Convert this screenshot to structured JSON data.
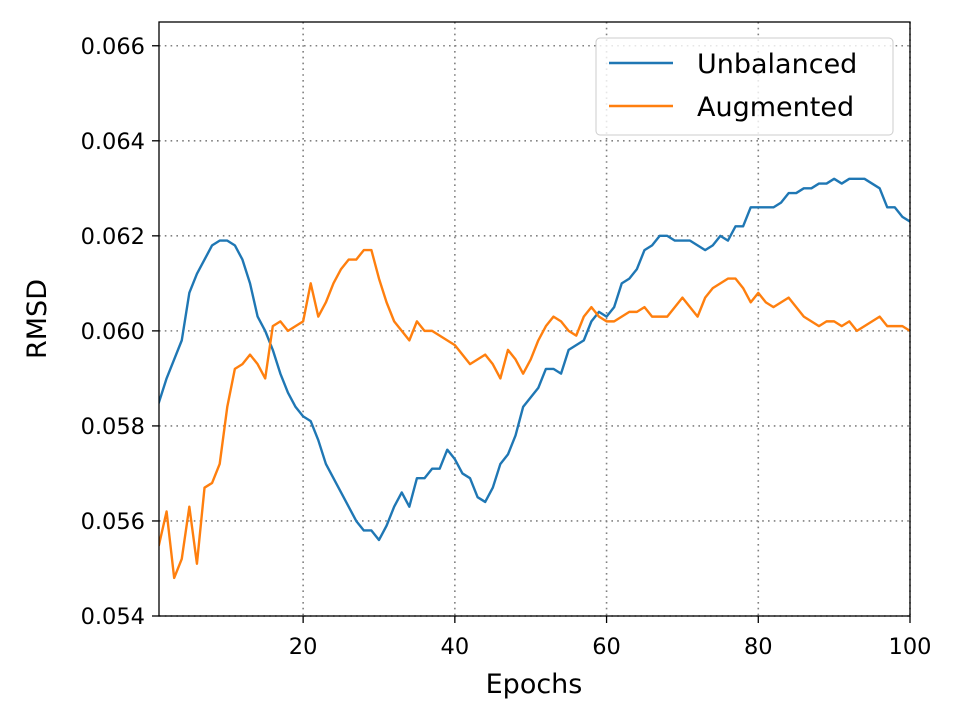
{
  "chart_data": {
    "type": "line",
    "xlabel": "Epochs",
    "ylabel": "RMSD",
    "xlim": [
      1,
      100
    ],
    "ylim": [
      0.054,
      0.0665
    ],
    "xticks": [
      20,
      40,
      60,
      80,
      100
    ],
    "xtick_labels": [
      "20",
      "40",
      "60",
      "80",
      "100"
    ],
    "yticks": [
      0.054,
      0.056,
      0.058,
      0.06,
      0.062,
      0.064,
      0.066
    ],
    "ytick_labels": [
      "0.054",
      "0.056",
      "0.058",
      "0.060",
      "0.062",
      "0.064",
      "0.066"
    ],
    "grid": true,
    "legend_position": "top-right",
    "x": [
      1,
      2,
      3,
      4,
      5,
      6,
      7,
      8,
      9,
      10,
      11,
      12,
      13,
      14,
      15,
      16,
      17,
      18,
      19,
      20,
      21,
      22,
      23,
      24,
      25,
      26,
      27,
      28,
      29,
      30,
      31,
      32,
      33,
      34,
      35,
      36,
      37,
      38,
      39,
      40,
      41,
      42,
      43,
      44,
      45,
      46,
      47,
      48,
      49,
      50,
      51,
      52,
      53,
      54,
      55,
      56,
      57,
      58,
      59,
      60,
      61,
      62,
      63,
      64,
      65,
      66,
      67,
      68,
      69,
      70,
      71,
      72,
      73,
      74,
      75,
      76,
      77,
      78,
      79,
      80,
      81,
      82,
      83,
      84,
      85,
      86,
      87,
      88,
      89,
      90,
      91,
      92,
      93,
      94,
      95,
      96,
      97,
      98,
      99,
      100
    ],
    "series": [
      {
        "name": "Unbalanced",
        "color": "#1f77b4",
        "values": [
          0.0585,
          0.059,
          0.0594,
          0.0598,
          0.0608,
          0.0612,
          0.0615,
          0.0618,
          0.0619,
          0.0619,
          0.0618,
          0.0615,
          0.061,
          0.0603,
          0.06,
          0.0596,
          0.0591,
          0.0587,
          0.0584,
          0.0582,
          0.0581,
          0.0577,
          0.0572,
          0.0569,
          0.0566,
          0.0563,
          0.056,
          0.0558,
          0.0558,
          0.0556,
          0.0559,
          0.0563,
          0.0566,
          0.0563,
          0.0569,
          0.0569,
          0.0571,
          0.0571,
          0.0575,
          0.0573,
          0.057,
          0.0569,
          0.0565,
          0.0564,
          0.0567,
          0.0572,
          0.0574,
          0.0578,
          0.0584,
          0.0586,
          0.0588,
          0.0592,
          0.0592,
          0.0591,
          0.0596,
          0.0597,
          0.0598,
          0.0602,
          0.0604,
          0.0603,
          0.0605,
          0.061,
          0.0611,
          0.0613,
          0.0617,
          0.0618,
          0.062,
          0.062,
          0.0619,
          0.0619,
          0.0619,
          0.0618,
          0.0617,
          0.0618,
          0.062,
          0.0619,
          0.0622,
          0.0622,
          0.0626,
          0.0626,
          0.0626,
          0.0626,
          0.0627,
          0.0629,
          0.0629,
          0.063,
          0.063,
          0.0631,
          0.0631,
          0.0632,
          0.0631,
          0.0632,
          0.0632,
          0.0632,
          0.0631,
          0.063,
          0.0626,
          0.0626,
          0.0624,
          0.0623
        ]
      },
      {
        "name": "Augmented",
        "color": "#ff7f0e",
        "values": [
          0.0555,
          0.0562,
          0.0548,
          0.0552,
          0.0563,
          0.0551,
          0.0567,
          0.0568,
          0.0572,
          0.0584,
          0.0592,
          0.0593,
          0.0595,
          0.0593,
          0.059,
          0.0601,
          0.0602,
          0.06,
          0.0601,
          0.0602,
          0.061,
          0.0603,
          0.0606,
          0.061,
          0.0613,
          0.0615,
          0.0615,
          0.0617,
          0.0617,
          0.0611,
          0.0606,
          0.0602,
          0.06,
          0.0598,
          0.0602,
          0.06,
          0.06,
          0.0599,
          0.0598,
          0.0597,
          0.0595,
          0.0593,
          0.0594,
          0.0595,
          0.0593,
          0.059,
          0.0596,
          0.0594,
          0.0591,
          0.0594,
          0.0598,
          0.0601,
          0.0603,
          0.0602,
          0.06,
          0.0599,
          0.0603,
          0.0605,
          0.0603,
          0.0602,
          0.0602,
          0.0603,
          0.0604,
          0.0604,
          0.0605,
          0.0603,
          0.0603,
          0.0603,
          0.0605,
          0.0607,
          0.0605,
          0.0603,
          0.0607,
          0.0609,
          0.061,
          0.0611,
          0.0611,
          0.0609,
          0.0606,
          0.0608,
          0.0606,
          0.0605,
          0.0606,
          0.0607,
          0.0605,
          0.0603,
          0.0602,
          0.0601,
          0.0602,
          0.0602,
          0.0601,
          0.0602,
          0.06,
          0.0601,
          0.0602,
          0.0603,
          0.0601,
          0.0601,
          0.0601,
          0.06
        ]
      }
    ]
  }
}
